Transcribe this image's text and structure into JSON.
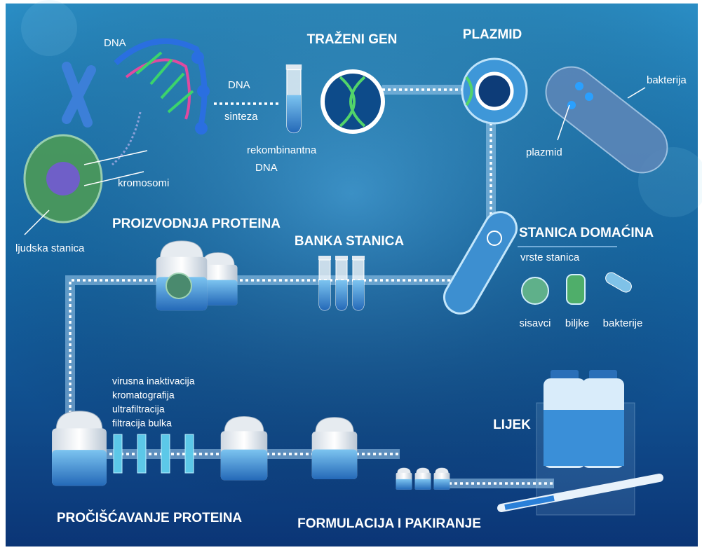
{
  "labels": {
    "dna": "DNA",
    "dna_synthesis": [
      "DNA",
      "sinteza"
    ],
    "target_gene": "TRAŽENI GEN",
    "plasmid_title": "PLAZMID",
    "bacterium": "bakterija",
    "plasmid": "plazmid",
    "recombinant_dna": [
      "rekombinantna",
      "DNA"
    ],
    "chromosomes": "kromosomi",
    "human_cell": "ljudska stanica",
    "protein_production": "PROIZVODNJA PROTEINA",
    "cell_bank": "BANKA STANICA",
    "host_cell": "STANICA DOMAĆINA",
    "cell_types": "vrste stanica",
    "cell_type_list": [
      "sisavci",
      "biljke",
      "bakterije"
    ],
    "purification_steps": [
      "virusna inaktivacija",
      "kromatografija",
      "ultrafiltracija",
      "filtracija bulka"
    ],
    "medicine": "LIJEK",
    "protein_purification": "PROČIŠĆAVANJE PROTEINA",
    "formulation": "FORMULACIJA I PAKIRANJE"
  }
}
